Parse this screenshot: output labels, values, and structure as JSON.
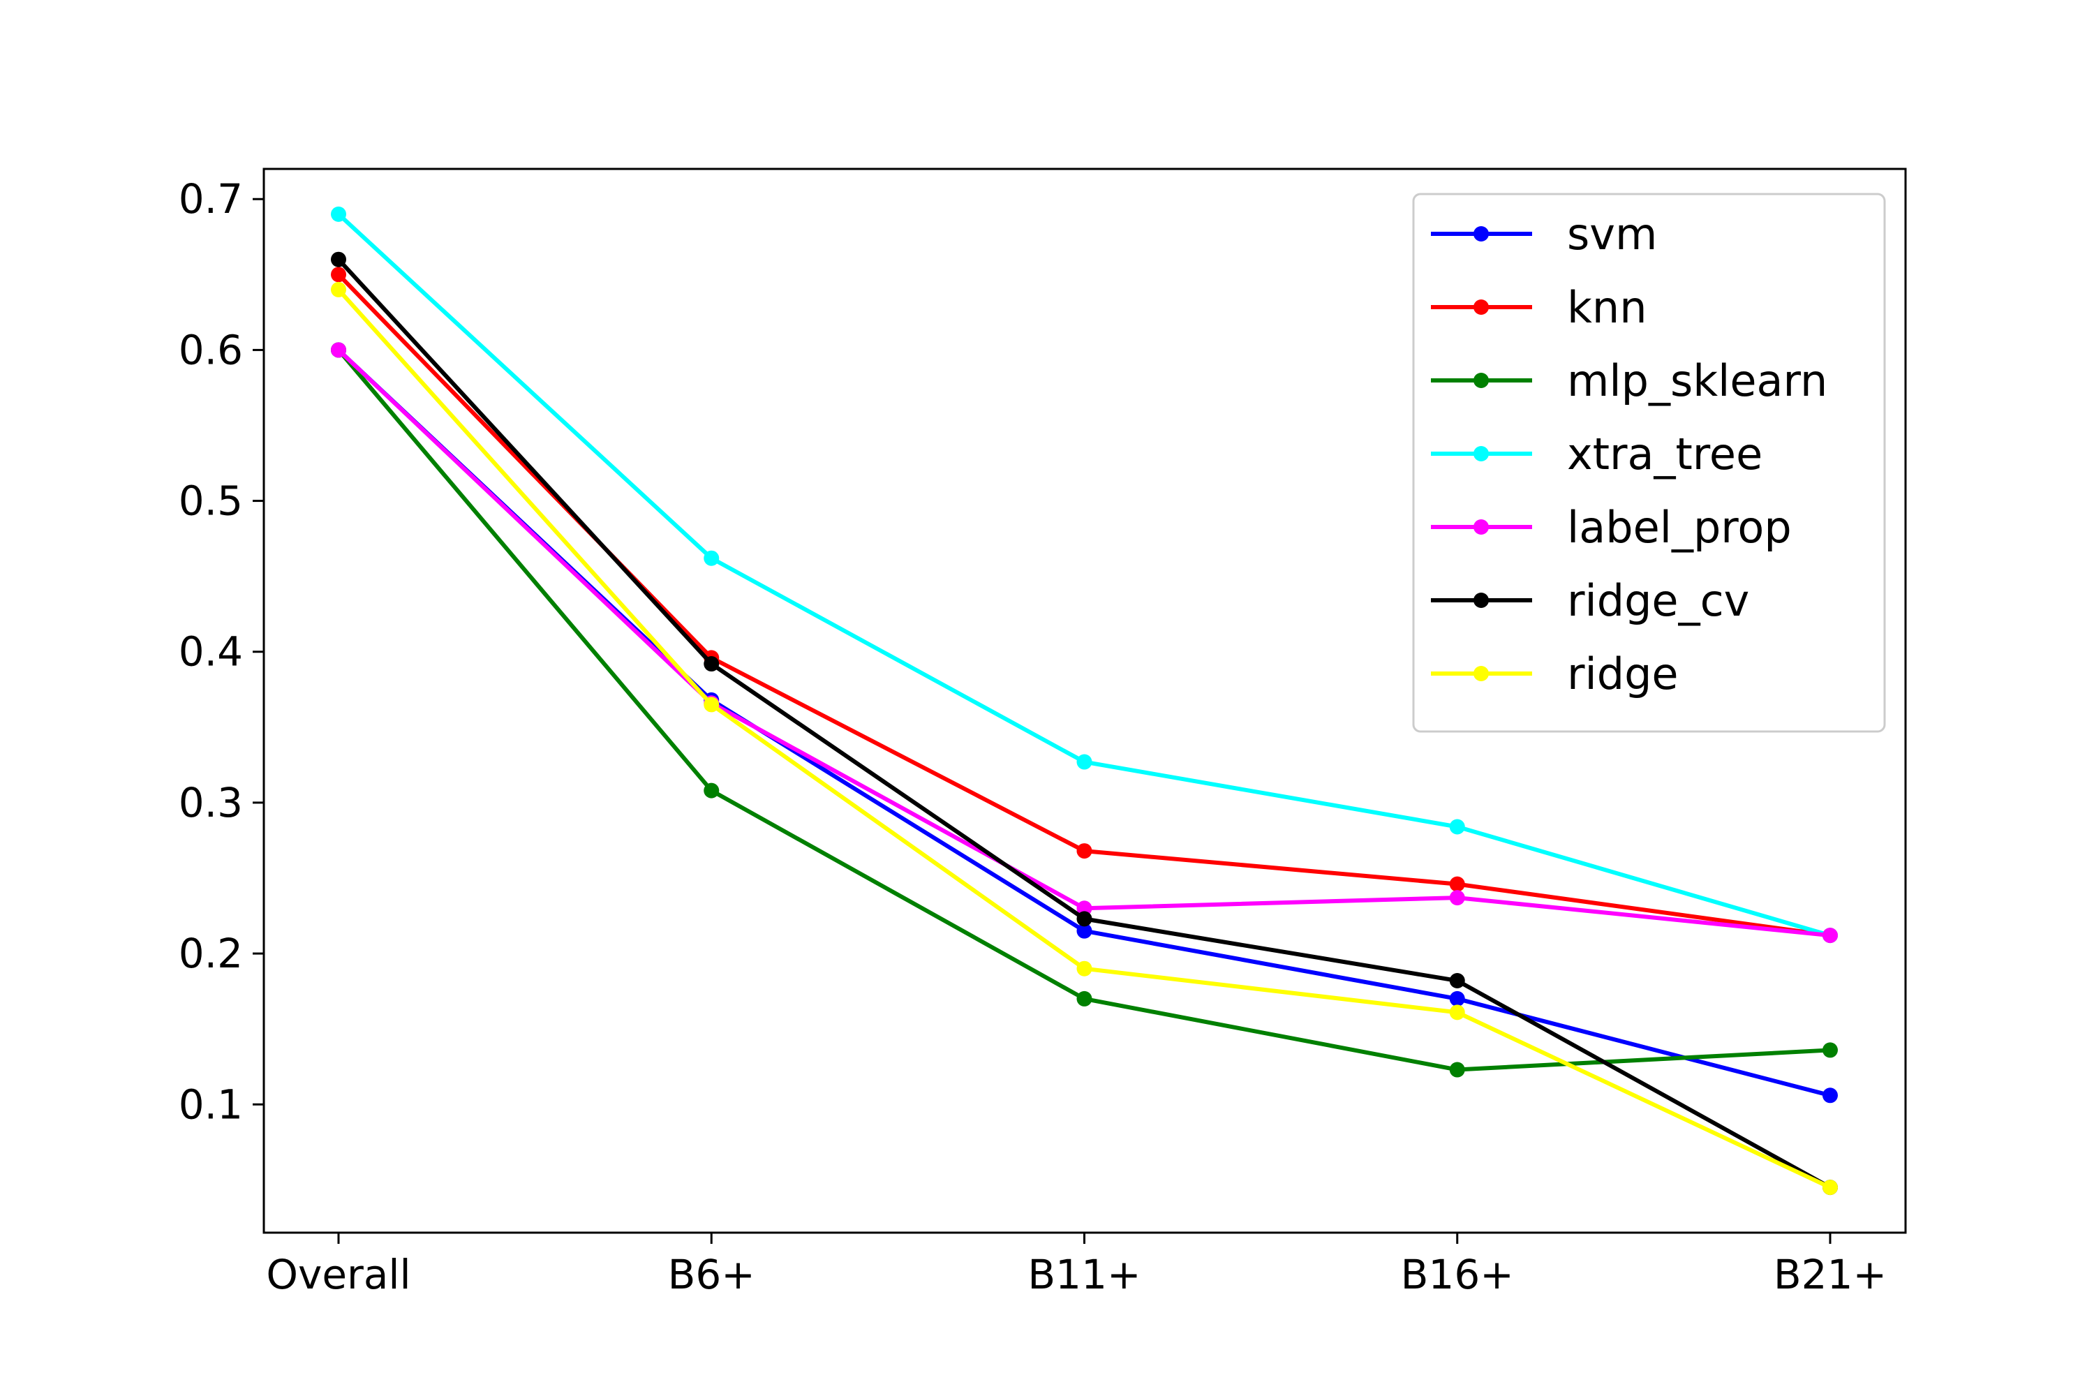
{
  "chart_data": {
    "type": "line",
    "title": "",
    "xlabel": "",
    "ylabel": "",
    "categories": [
      "Overall",
      "B6+",
      "B11+",
      "B16+",
      "B21+"
    ],
    "ylim": [
      0.015,
      0.72
    ],
    "yticks": [
      "0.1",
      "0.2",
      "0.3",
      "0.4",
      "0.5",
      "0.6",
      "0.7"
    ],
    "grid": false,
    "legend_position": "top-right",
    "series": [
      {
        "name": "svm",
        "color": "#0000ff",
        "values": [
          0.6,
          0.368,
          0.215,
          0.17,
          0.106
        ]
      },
      {
        "name": "knn",
        "color": "#ff0000",
        "values": [
          0.65,
          0.396,
          0.268,
          0.246,
          0.212
        ]
      },
      {
        "name": "mlp_sklearn",
        "color": "#008000",
        "values": [
          0.6,
          0.308,
          0.17,
          0.123,
          0.136
        ]
      },
      {
        "name": "xtra_tree",
        "color": "#00ffff",
        "values": [
          0.69,
          0.462,
          0.327,
          0.284,
          0.212
        ]
      },
      {
        "name": "label_prop",
        "color": "#ff00ff",
        "values": [
          0.6,
          0.366,
          0.23,
          0.237,
          0.212
        ]
      },
      {
        "name": "ridge_cv",
        "color": "#000000",
        "values": [
          0.66,
          0.392,
          0.223,
          0.182,
          0.045
        ]
      },
      {
        "name": "ridge",
        "color": "#ffff00",
        "values": [
          0.64,
          0.365,
          0.19,
          0.161,
          0.045
        ]
      }
    ]
  }
}
